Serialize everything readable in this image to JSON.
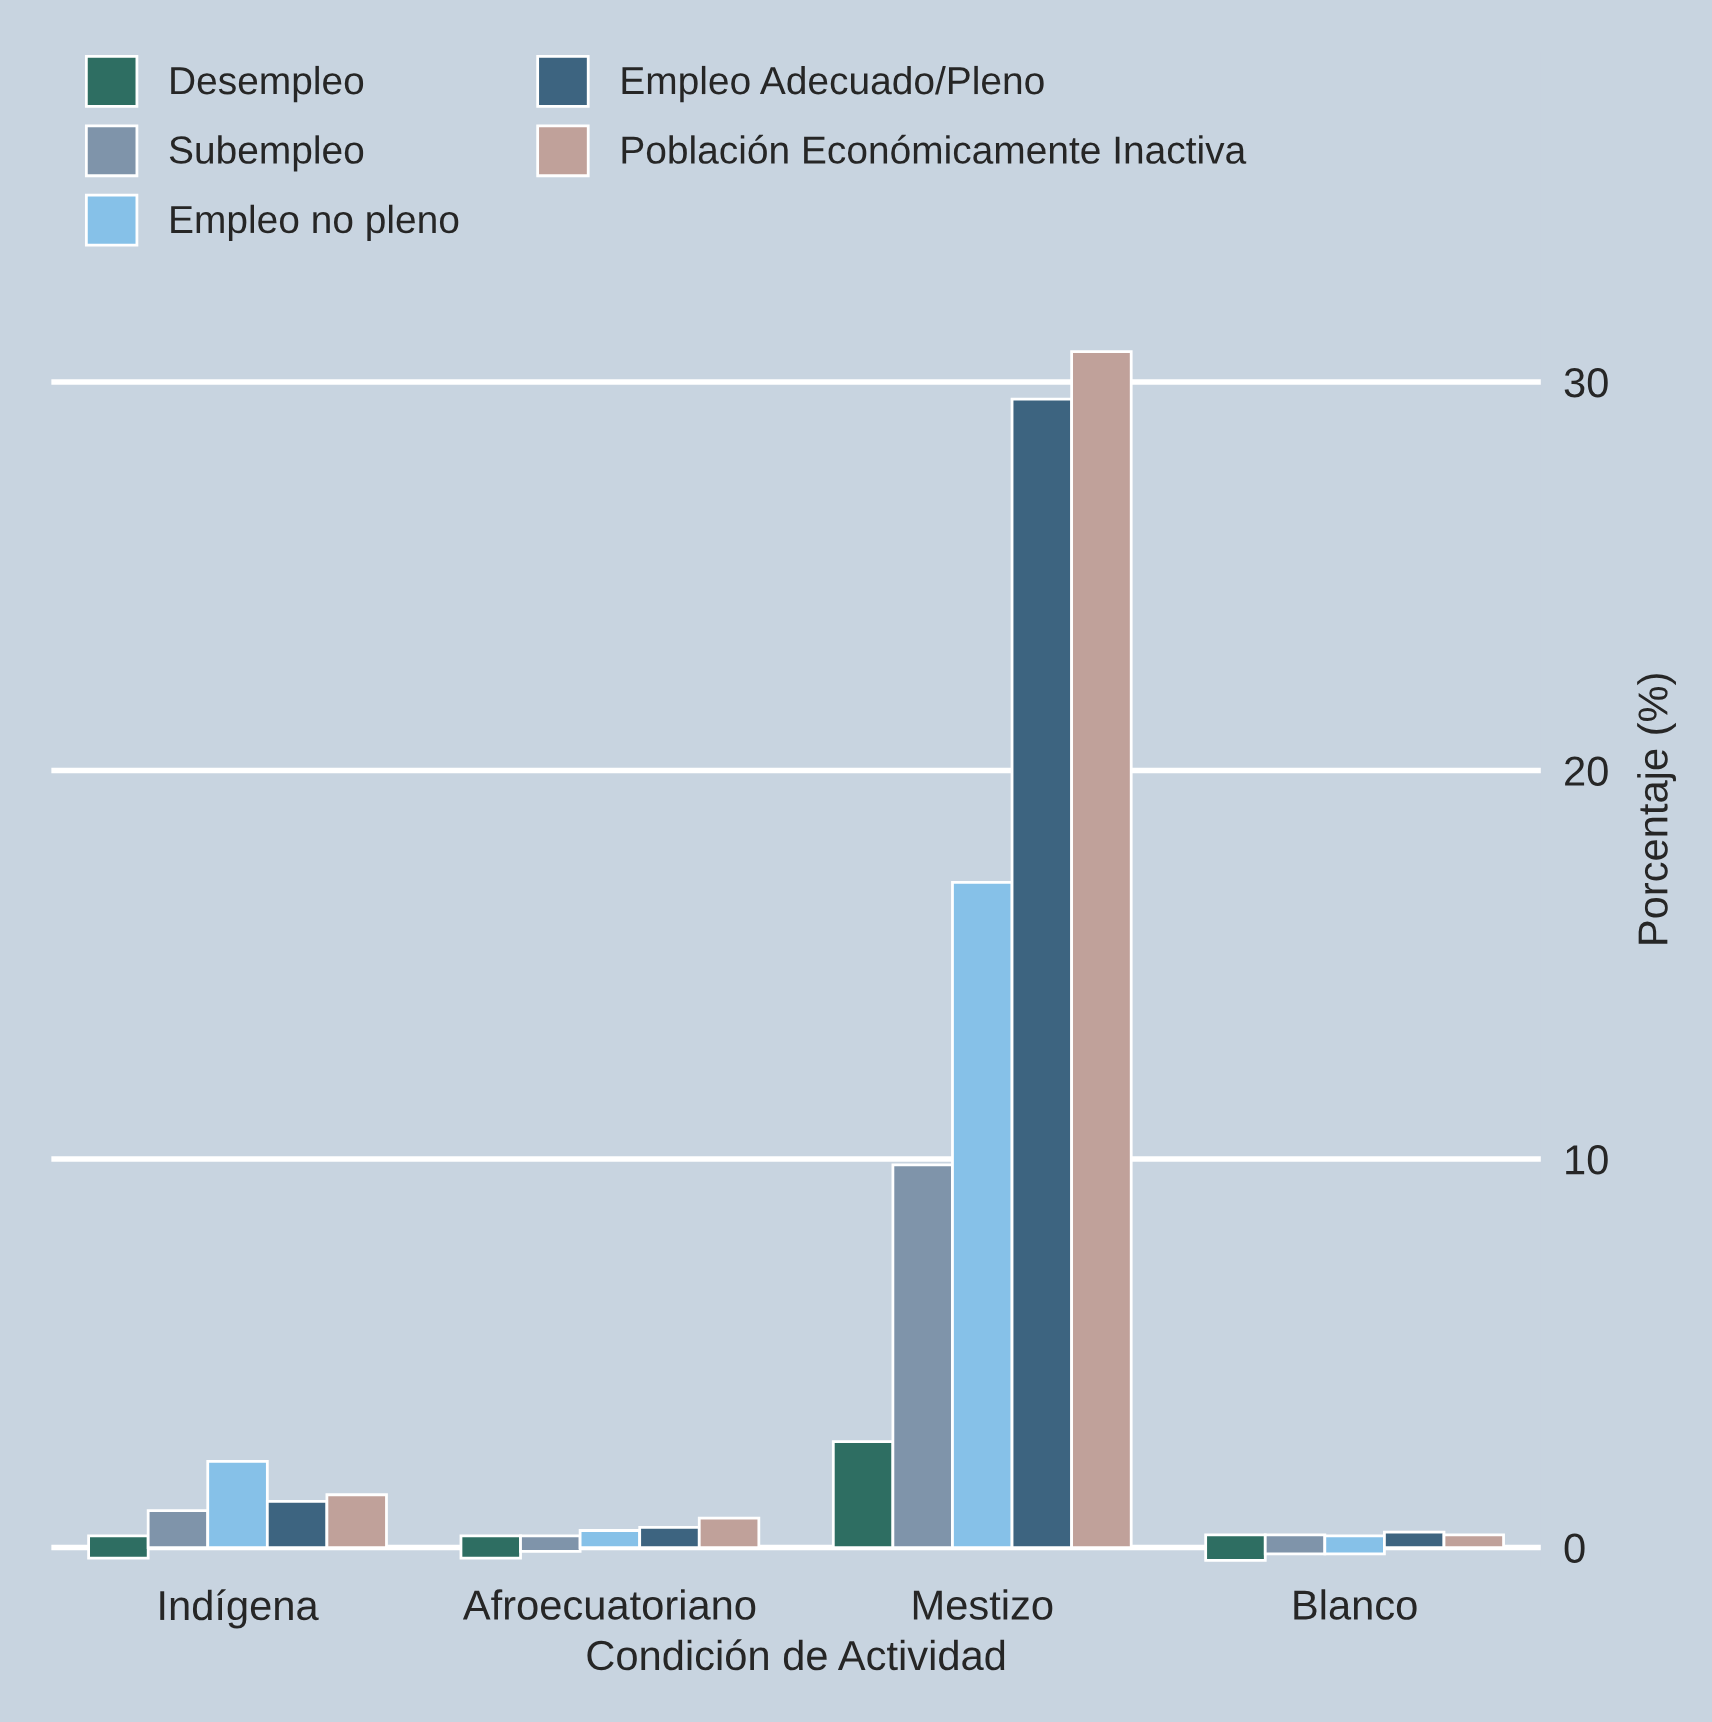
{
  "chart_data": {
    "type": "bar",
    "xlabel": "Condición de Actividad",
    "ylabel": "Porcentaje (%)",
    "categories": [
      "Indígena",
      "Afroecuatoriano",
      "Mestizo",
      "Blanco"
    ],
    "series": [
      {
        "name": "Desempleo",
        "color": "#2e6e62",
        "values": [
          0.57,
          0.57,
          2.73,
          0.66
        ],
        "base": [
          -0.27,
          -0.27,
          0,
          -0.33
        ]
      },
      {
        "name": "Subempleo",
        "color": "#7f94aa",
        "values": [
          0.95,
          0.4,
          9.85,
          0.49
        ],
        "base": [
          0,
          -0.1,
          0,
          -0.16
        ]
      },
      {
        "name": "Empleo no pleno",
        "color": "#86c1e8",
        "values": [
          2.22,
          0.44,
          17.12,
          0.46
        ],
        "base": [
          0,
          0,
          0,
          -0.16
        ]
      },
      {
        "name": "Empleo Adecuado/Pleno",
        "color": "#3d6480",
        "values": [
          1.19,
          0.52,
          29.56,
          0.4
        ]
      },
      {
        "name": "Población Económicamente Inactiva",
        "color": "#c0a19a",
        "values": [
          1.36,
          0.76,
          30.78,
          0.33
        ]
      }
    ],
    "ylim": [
      -0.5,
      38.5
    ],
    "yticks": [
      0,
      10,
      20,
      30
    ],
    "grid": "y",
    "legend": "top left"
  }
}
